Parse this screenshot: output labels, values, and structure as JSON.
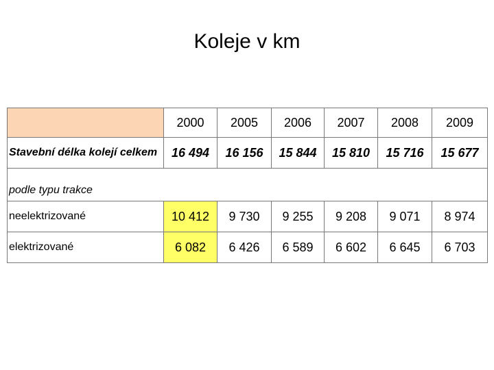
{
  "title": "Koleje v km",
  "table": {
    "years": [
      "2000",
      "2005",
      "2006",
      "2007",
      "2008",
      "2009"
    ],
    "total": {
      "label": "Stavební délka kolejí celkem",
      "values": [
        "16 494",
        "16 156",
        "15 844",
        "15 810",
        "15 716",
        "15 677"
      ]
    },
    "section": "podle typu trakce",
    "rows": [
      {
        "label": "neelektrizované",
        "values": [
          "10 412",
          "9 730",
          "9 255",
          "9 208",
          "9 071",
          "8 974"
        ]
      },
      {
        "label": "elektrizované",
        "values": [
          "6 082",
          "6 426",
          "6 589",
          "6 602",
          "6 645",
          "6 703"
        ]
      }
    ]
  }
}
